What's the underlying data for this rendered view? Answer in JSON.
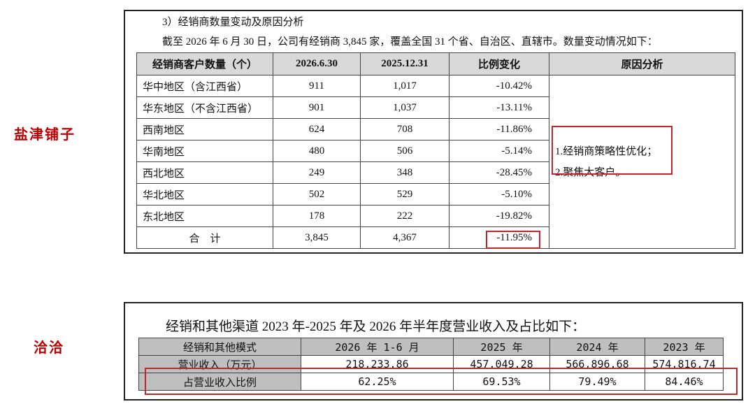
{
  "side_labels": [
    "盐津铺子",
    "洽洽"
  ],
  "distributor_section": {
    "heading": "3）经销商数量变动及原因分析",
    "intro": "截至 2026 年 6 月 30 日，公司有经销商 3,845 家，覆盖全国 31 个省、自治区、直辖市。数量变动情况如下：",
    "table": {
      "header": [
        "经销商客户数量（个）",
        "2026.6.30",
        "2025.12.31",
        "比例变化",
        "原因分析"
      ],
      "rows": [
        [
          "华中地区（含江西省）",
          "911",
          "1,017",
          "-10.42%"
        ],
        [
          "华东地区（不含江西省）",
          "901",
          "1,037",
          "-13.11%"
        ],
        [
          "西南地区",
          "624",
          "708",
          "-11.86%"
        ],
        [
          "华南地区",
          "480",
          "506",
          "-5.14%"
        ],
        [
          "西北地区",
          "249",
          "348",
          "-28.45%"
        ],
        [
          "华北地区",
          "502",
          "529",
          "-5.10%"
        ],
        [
          "东北地区",
          "178",
          "222",
          "-19.82%"
        ],
        [
          "合　计",
          "3,845",
          "4,367",
          "-11.95%"
        ]
      ],
      "reason": [
        "1.经销商策略性优化；",
        "2.聚焦大客户。"
      ]
    }
  },
  "revenue_section": {
    "heading": "经销和其他渠道 2023 年-2025 年及 2026 年半年度营业收入及占比如下：",
    "table": {
      "header": [
        "经销和其他模式",
        "2026 年 1-6 月",
        "2025 年",
        "2024 年",
        "2023 年"
      ],
      "rows": [
        [
          "营业收入（万元）",
          "218,233.86",
          "457,049.28",
          "566,896.68",
          "574,816.74"
        ],
        [
          "占营业收入比例",
          "62.25%",
          "69.53%",
          "79.49%",
          "84.46%"
        ]
      ]
    }
  }
}
